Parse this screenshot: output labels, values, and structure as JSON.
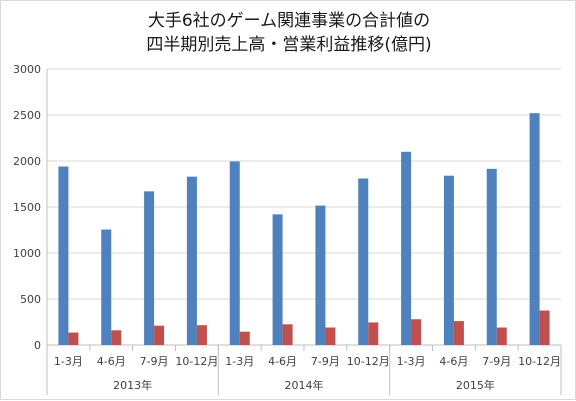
{
  "chart_data": {
    "type": "bar",
    "title": [
      "大手6社のゲーム関連事業の合計値の",
      "四半期別売上高・営業利益推移(億円)"
    ],
    "xlabel": "",
    "ylabel": "",
    "ylim": [
      0,
      3000
    ],
    "yticks": [
      0,
      500,
      1000,
      1500,
      2000,
      2500,
      3000
    ],
    "grid": true,
    "legend": "none",
    "categories": [
      "1-3月",
      "4-6月",
      "7-9月",
      "10-12月",
      "1-3月",
      "4-6月",
      "7-9月",
      "10-12月",
      "1-3月",
      "4-6月",
      "7-9月",
      "10-12月"
    ],
    "groups": [
      {
        "label": "2013年",
        "count": 4
      },
      {
        "label": "2014年",
        "count": 4
      },
      {
        "label": "2015年",
        "count": 4
      }
    ],
    "series": [
      {
        "color": "#4f81bd",
        "values": [
          1940,
          1255,
          1670,
          1830,
          1995,
          1420,
          1515,
          1810,
          2100,
          1840,
          1915,
          2520
        ]
      },
      {
        "color": "#c0504d",
        "values": [
          135,
          160,
          210,
          215,
          145,
          225,
          190,
          245,
          280,
          260,
          190,
          375
        ]
      }
    ]
  }
}
